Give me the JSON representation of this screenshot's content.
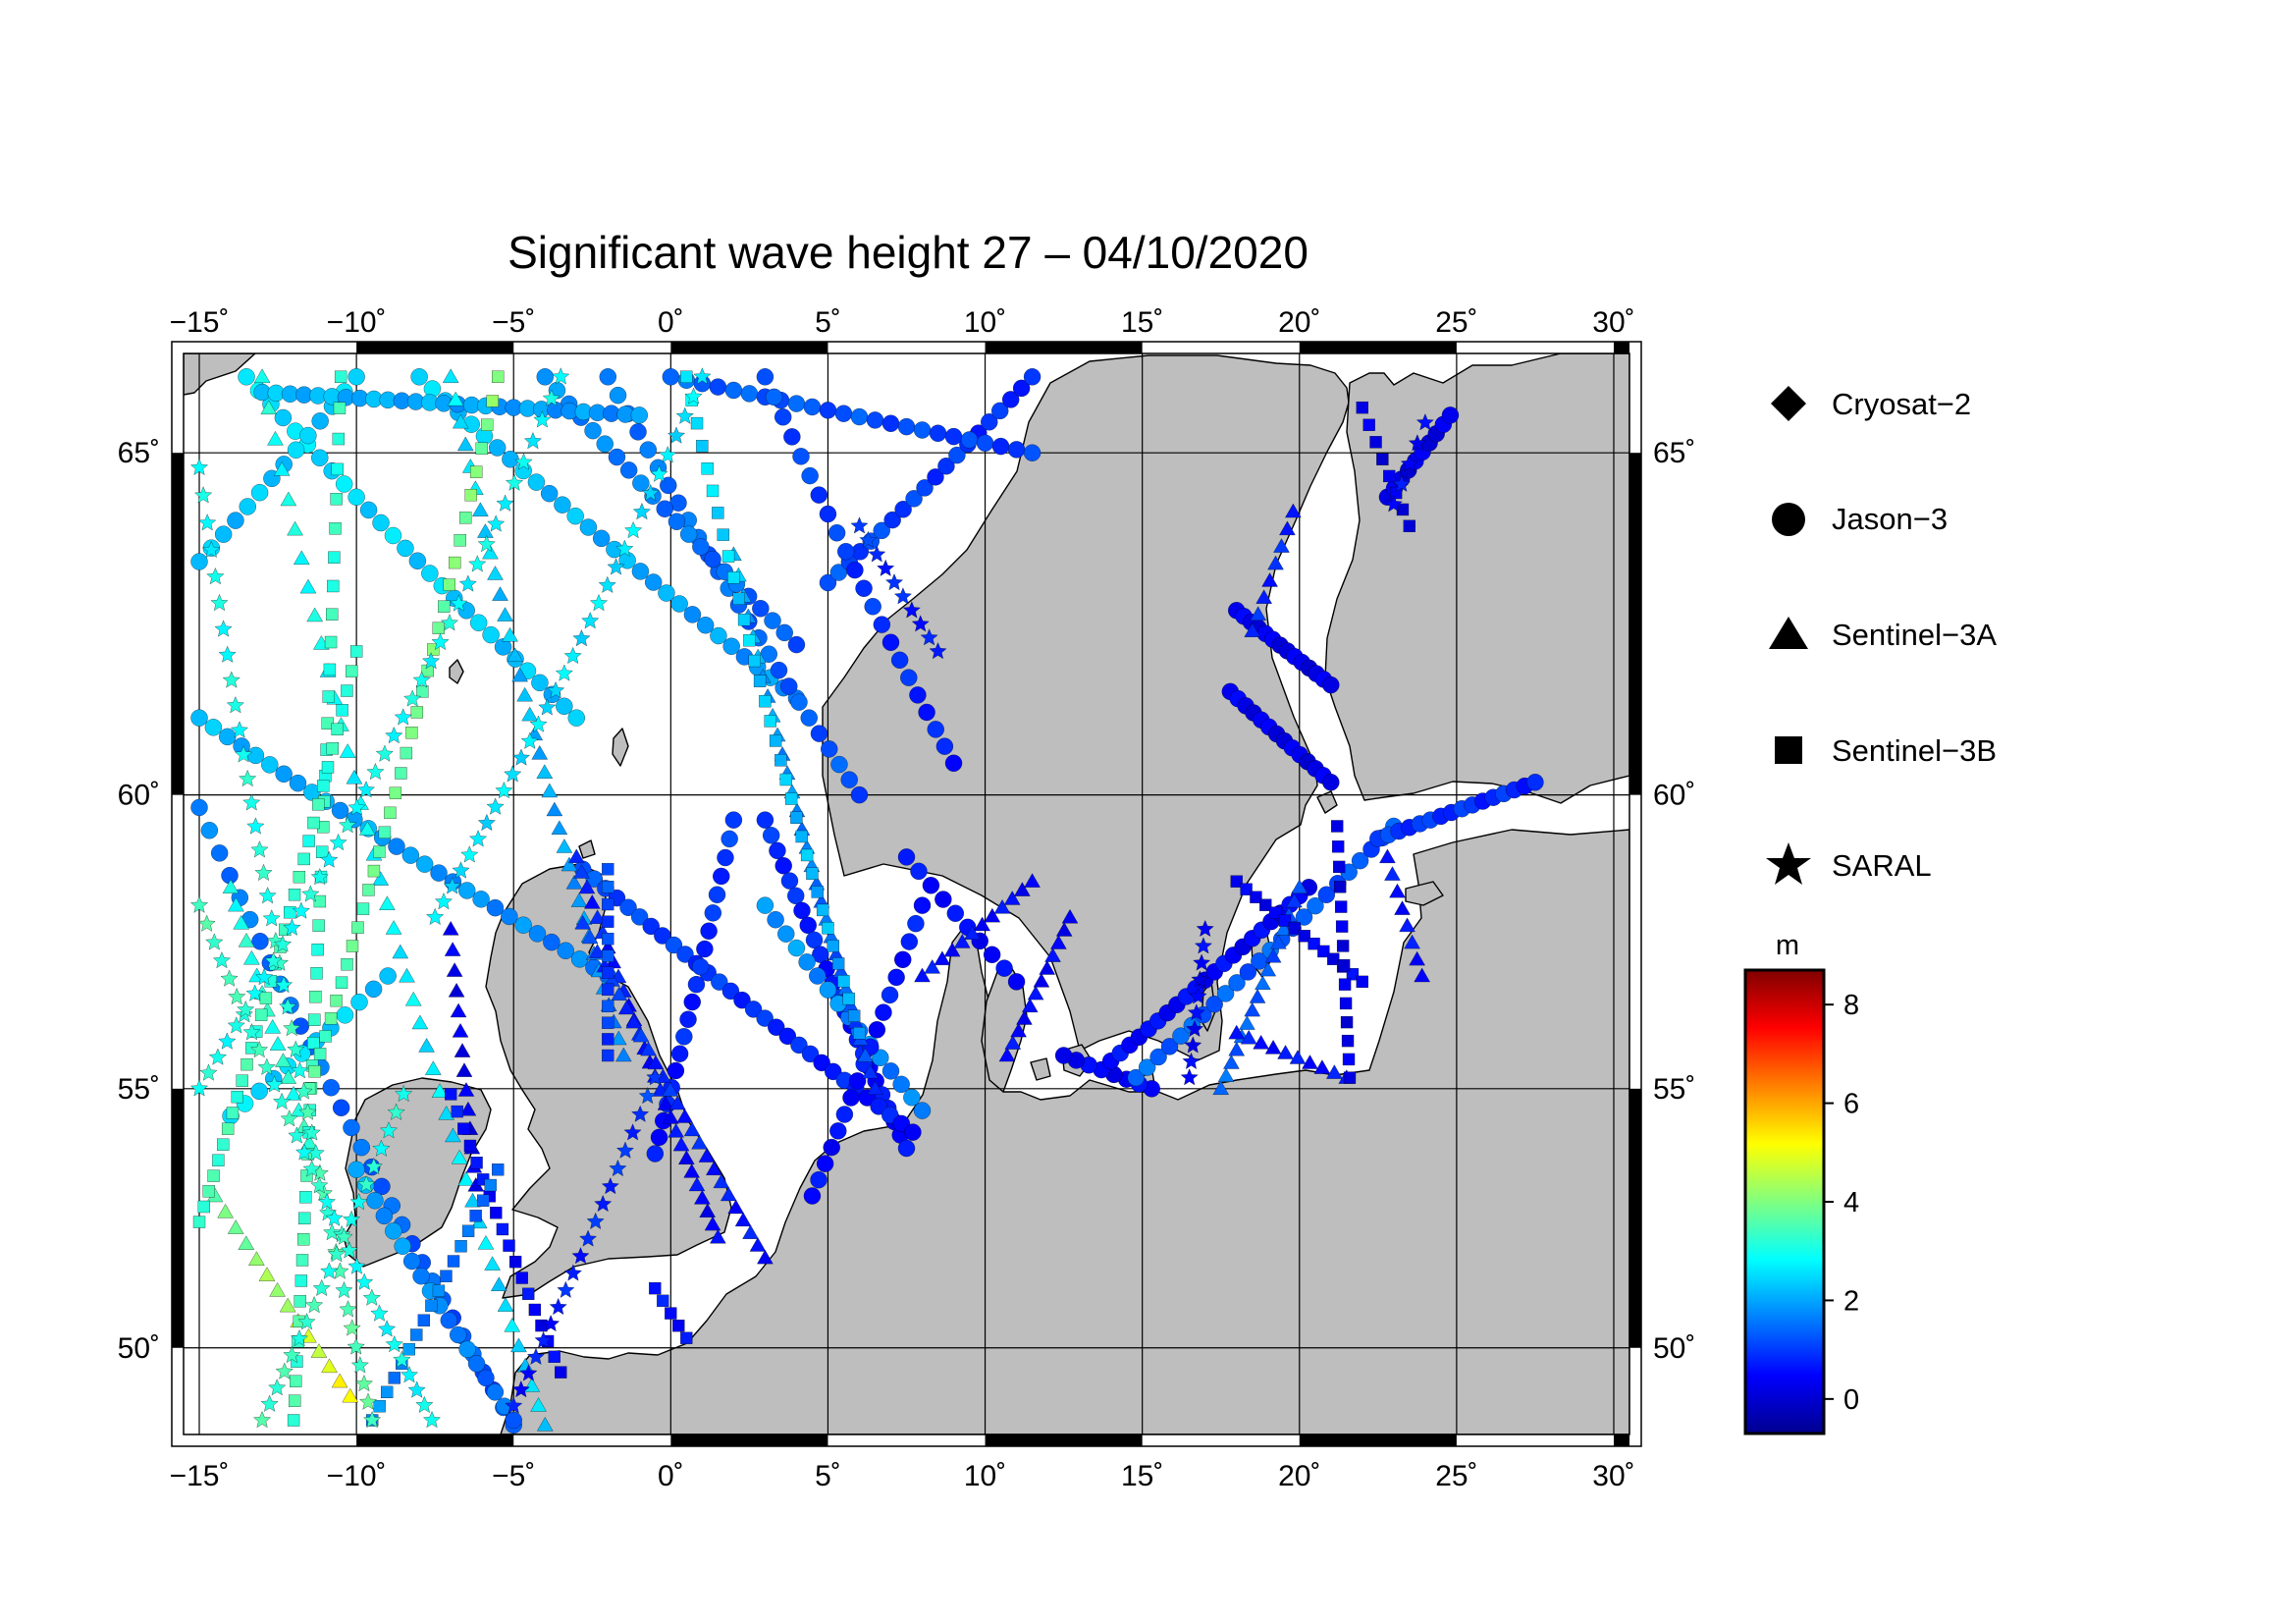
{
  "title": "Significant wave height 27 – 04/10/2020",
  "map": {
    "lon_range": [
      -15.5,
      30.5
    ],
    "lat_range": [
      48.2,
      66.3
    ],
    "lon_ticks": [
      -15,
      -10,
      -5,
      0,
      5,
      10,
      15,
      20,
      25,
      30
    ],
    "lon_tick_labels": [
      "−15˚",
      "−10˚",
      "−5˚",
      "0˚",
      "5˚",
      "10˚",
      "15˚",
      "20˚",
      "25˚",
      "30˚"
    ],
    "lat_ticks": [
      50,
      55,
      60,
      65
    ],
    "lat_tick_labels": [
      "50˚",
      "55˚",
      "60˚",
      "65˚"
    ],
    "land_color": "#bebebe",
    "sea_color": "#ffffff",
    "grid": true
  },
  "legend": {
    "placement": "right",
    "entries": [
      {
        "label": "Cryosat−2",
        "symbol": "diamond"
      },
      {
        "label": "Jason−3",
        "symbol": "circle"
      },
      {
        "label": "Sentinel−3A",
        "symbol": "triangle"
      },
      {
        "label": "Sentinel−3B",
        "symbol": "square"
      },
      {
        "label": "SARAL",
        "symbol": "star"
      }
    ]
  },
  "colorbar": {
    "unit": "m",
    "min": -0.7,
    "max": 8.7,
    "ticks": [
      0,
      2,
      4,
      6,
      8
    ],
    "tick_labels": [
      "0",
      "2",
      "4",
      "6",
      "8"
    ],
    "colors": [
      "#00008f",
      "#0000ff",
      "#0080ff",
      "#00ffff",
      "#80ff80",
      "#ffff00",
      "#ff8000",
      "#ff0000",
      "#800000"
    ]
  },
  "chart_data": {
    "type": "scatter",
    "x_label": "",
    "y_label": "",
    "tracks": [
      {
        "sat": "Jason−3",
        "sym": "circle",
        "from": [
          -15.0,
          61.2
        ],
        "to": [
          -2.0,
          57.0
        ],
        "n": 30,
        "h": [
          2.2,
          1.6
        ]
      },
      {
        "sat": "Jason−3",
        "sym": "circle",
        "from": [
          -15.0,
          59.8
        ],
        "to": [
          -5.0,
          48.4
        ],
        "n": 32,
        "h": [
          1.6,
          1.2
        ]
      },
      {
        "sat": "Jason−3",
        "sym": "circle",
        "from": [
          -13.5,
          66.0
        ],
        "to": [
          -3.0,
          61.2
        ],
        "n": 28,
        "h": [
          2.6,
          2.2
        ]
      },
      {
        "sat": "Jason−3",
        "sym": "circle",
        "from": [
          -8.0,
          66.0
        ],
        "to": [
          4.0,
          61.5
        ],
        "n": 30,
        "h": [
          2.4,
          1.8
        ]
      },
      {
        "sat": "Jason−3",
        "sym": "circle",
        "from": [
          -2.0,
          66.0
        ],
        "to": [
          6.0,
          60.0
        ],
        "n": 26,
        "h": [
          1.6,
          1.2
        ]
      },
      {
        "sat": "Jason−3",
        "sym": "circle",
        "from": [
          5.0,
          63.2
        ],
        "to": [
          11.5,
          66.0
        ],
        "n": 20,
        "h": [
          1.2,
          0.8
        ]
      },
      {
        "sat": "Jason−3",
        "sym": "circle",
        "from": [
          0.0,
          66.0
        ],
        "to": [
          11.5,
          65.0
        ],
        "n": 24,
        "h": [
          1.4,
          1.0
        ]
      },
      {
        "sat": "Jason−3",
        "sym": "circle",
        "from": [
          3.0,
          66.0
        ],
        "to": [
          9.0,
          60.5
        ],
        "n": 22,
        "h": [
          1.2,
          0.7
        ]
      },
      {
        "sat": "Jason−3",
        "sym": "circle",
        "from": [
          -4.0,
          66.0
        ],
        "to": [
          4.0,
          62.3
        ],
        "n": 22,
        "h": [
          1.8,
          1.3
        ]
      },
      {
        "sat": "Jason−3",
        "sym": "circle",
        "from": [
          -10.0,
          66.0
        ],
        "to": [
          -15.0,
          63.5
        ],
        "n": 14,
        "h": [
          2.4,
          2.2
        ]
      },
      {
        "sat": "Jason−3",
        "sym": "circle",
        "from": [
          3.0,
          59.6
        ],
        "to": [
          7.5,
          53.9
        ],
        "n": 24,
        "h": [
          0.9,
          0.5
        ]
      },
      {
        "sat": "Jason−3",
        "sym": "circle",
        "from": [
          -2.8,
          58.8
        ],
        "to": [
          7.7,
          54.2
        ],
        "n": 30,
        "h": [
          1.2,
          0.6
        ]
      },
      {
        "sat": "Jason−3",
        "sym": "circle",
        "from": [
          8.0,
          54.6
        ],
        "to": [
          3.0,
          58.2
        ],
        "n": 16,
        "h": [
          1.6,
          1.9
        ]
      },
      {
        "sat": "Jason−3",
        "sym": "circle",
        "from": [
          2.0,
          59.6
        ],
        "to": [
          -0.5,
          53.8
        ],
        "n": 20,
        "h": [
          1.0,
          0.6
        ]
      },
      {
        "sat": "Jason−3",
        "sym": "circle",
        "from": [
          4.5,
          53.0
        ],
        "to": [
          8.0,
          58.2
        ],
        "n": 18,
        "h": [
          0.5,
          0.7
        ]
      },
      {
        "sat": "Jason−3",
        "sym": "circle",
        "from": [
          11.0,
          56.9
        ],
        "to": [
          7.5,
          59.0
        ],
        "n": 10,
        "h": [
          0.4,
          0.6
        ]
      },
      {
        "sat": "Jason−3",
        "sym": "circle",
        "from": [
          15.3,
          55.0
        ],
        "to": [
          12.5,
          55.6
        ],
        "n": 8,
        "h": [
          0.4,
          0.4
        ]
      },
      {
        "sat": "Jason−3",
        "sym": "circle",
        "from": [
          14.0,
          55.5
        ],
        "to": [
          20.3,
          58.5
        ],
        "n": 22,
        "h": [
          0.5,
          0.4
        ]
      },
      {
        "sat": "Jason−3",
        "sym": "circle",
        "from": [
          14.8,
          55.2
        ],
        "to": [
          23.0,
          59.5
        ],
        "n": 24,
        "h": [
          1.4,
          1.2
        ]
      },
      {
        "sat": "Jason−3",
        "sym": "circle",
        "from": [
          22.5,
          59.3
        ],
        "to": [
          27.5,
          60.2
        ],
        "n": 16,
        "h": [
          1.0,
          0.8
        ]
      },
      {
        "sat": "Jason−3",
        "sym": "circle",
        "from": [
          18.0,
          62.8
        ],
        "to": [
          21.0,
          61.7
        ],
        "n": 14,
        "h": [
          0.3,
          0.2
        ]
      },
      {
        "sat": "Jason−3",
        "sym": "circle",
        "from": [
          17.8,
          61.6
        ],
        "to": [
          21.0,
          60.2
        ],
        "n": 14,
        "h": [
          0.3,
          0.2
        ]
      },
      {
        "sat": "Jason−3",
        "sym": "circle",
        "from": [
          22.8,
          64.4
        ],
        "to": [
          24.8,
          65.5
        ],
        "n": 10,
        "h": [
          0.2,
          0.2
        ]
      },
      {
        "sat": "Jason−3",
        "sym": "circle",
        "from": [
          -10.0,
          53.5
        ],
        "to": [
          -5.0,
          48.5
        ],
        "n": 18,
        "h": [
          2.0,
          1.4
        ]
      },
      {
        "sat": "Jason−3",
        "sym": "circle",
        "from": [
          -14.0,
          54.5
        ],
        "to": [
          -9.0,
          57.0
        ],
        "n": 12,
        "h": [
          2.5,
          2.3
        ]
      },
      {
        "sat": "Jason−3",
        "sym": "circle",
        "from": [
          -13.0,
          65.8
        ],
        "to": [
          -1.0,
          65.5
        ],
        "n": 28,
        "h": [
          2.2,
          1.8
        ]
      },
      {
        "sat": "Sentinel−3A",
        "sym": "triangle",
        "from": [
          -13.0,
          66.0
        ],
        "to": [
          -4.0,
          48.4
        ],
        "n": 44,
        "h": [
          3.0,
          2.4
        ]
      },
      {
        "sat": "Sentinel−3A",
        "sym": "triangle",
        "from": [
          -11.5,
          54.0
        ],
        "to": [
          -14.0,
          58.5
        ],
        "n": 16,
        "h": [
          3.2,
          3.0
        ]
      },
      {
        "sat": "Sentinel−3A",
        "sym": "triangle",
        "from": [
          -7.0,
          66.0
        ],
        "to": [
          -1.5,
          55.6
        ],
        "n": 36,
        "h": [
          2.6,
          1.6
        ]
      },
      {
        "sat": "Sentinel−3A",
        "sym": "triangle",
        "from": [
          2.0,
          63.6
        ],
        "to": [
          6.5,
          55.0
        ],
        "n": 30,
        "h": [
          2.2,
          1.0
        ]
      },
      {
        "sat": "Sentinel−3A",
        "sym": "triangle",
        "from": [
          -3.0,
          59.0
        ],
        "to": [
          1.5,
          52.2
        ],
        "n": 28,
        "h": [
          0.8,
          0.4
        ]
      },
      {
        "sat": "Sentinel−3A",
        "sym": "triangle",
        "from": [
          -2.8,
          57.9
        ],
        "to": [
          3.0,
          51.8
        ],
        "n": 26,
        "h": [
          1.0,
          0.6
        ]
      },
      {
        "sat": "Sentinel−3A",
        "sym": "triangle",
        "from": [
          8.0,
          57.0
        ],
        "to": [
          11.5,
          58.6
        ],
        "n": 12,
        "h": [
          0.6,
          0.5
        ]
      },
      {
        "sat": "Sentinel−3A",
        "sym": "triangle",
        "from": [
          10.7,
          55.6
        ],
        "to": [
          12.7,
          58.0
        ],
        "n": 12,
        "h": [
          0.5,
          0.4
        ]
      },
      {
        "sat": "Sentinel−3A",
        "sym": "triangle",
        "from": [
          17.5,
          55.0
        ],
        "to": [
          20.0,
          58.5
        ],
        "n": 16,
        "h": [
          1.4,
          1.2
        ]
      },
      {
        "sat": "Sentinel−3A",
        "sym": "triangle",
        "from": [
          18.0,
          56.0
        ],
        "to": [
          21.5,
          55.2
        ],
        "n": 10,
        "h": [
          0.6,
          0.6
        ]
      },
      {
        "sat": "Sentinel−3A",
        "sym": "triangle",
        "from": [
          22.8,
          59.0
        ],
        "to": [
          23.9,
          57.0
        ],
        "n": 8,
        "h": [
          0.6,
          0.6
        ]
      },
      {
        "sat": "Sentinel−3A",
        "sym": "triangle",
        "from": [
          18.5,
          62.5
        ],
        "to": [
          19.8,
          64.2
        ],
        "n": 8,
        "h": [
          0.8,
          0.8
        ]
      },
      {
        "sat": "Sentinel−3A",
        "sym": "triangle",
        "from": [
          -7.0,
          57.8
        ],
        "to": [
          -6.2,
          53.2
        ],
        "n": 14,
        "h": [
          0.3,
          0.2
        ]
      },
      {
        "sat": "Sentinel−3A",
        "sym": "triangle",
        "from": [
          -10.2,
          49.0
        ],
        "to": [
          -14.5,
          53.0
        ],
        "n": 14,
        "h": [
          5.2,
          3.6
        ]
      },
      {
        "sat": "Sentinel−3B",
        "sym": "square",
        "from": [
          -10.5,
          66.0
        ],
        "to": [
          -12.0,
          48.5
        ],
        "n": 44,
        "h": [
          3.2,
          3.4
        ]
      },
      {
        "sat": "Sentinel−3B",
        "sym": "square",
        "from": [
          -10.0,
          62.2
        ],
        "to": [
          -15.0,
          52.5
        ],
        "n": 34,
        "h": [
          3.2,
          3.4
        ]
      },
      {
        "sat": "Sentinel−3B",
        "sym": "square",
        "from": [
          -5.5,
          66.0
        ],
        "to": [
          -11.5,
          55.0
        ],
        "n": 36,
        "h": [
          4.0,
          3.5
        ]
      },
      {
        "sat": "Sentinel−3B",
        "sym": "square",
        "from": [
          0.5,
          66.0
        ],
        "to": [
          6.0,
          56.0
        ],
        "n": 34,
        "h": [
          2.6,
          2.0
        ]
      },
      {
        "sat": "Sentinel−3B",
        "sym": "square",
        "from": [
          -2.0,
          58.8
        ],
        "to": [
          -2.0,
          55.6
        ],
        "n": 12,
        "h": [
          1.2,
          1.0
        ]
      },
      {
        "sat": "Sentinel−3B",
        "sym": "square",
        "from": [
          -7.0,
          54.9
        ],
        "to": [
          -3.5,
          49.5
        ],
        "n": 18,
        "h": [
          0.6,
          0.4
        ]
      },
      {
        "sat": "Sentinel−3B",
        "sym": "square",
        "from": [
          -5.5,
          53.5
        ],
        "to": [
          -9.5,
          48.5
        ],
        "n": 18,
        "h": [
          1.4,
          1.8
        ]
      },
      {
        "sat": "Sentinel−3B",
        "sym": "square",
        "from": [
          18.0,
          58.6
        ],
        "to": [
          22.0,
          56.9
        ],
        "n": 14,
        "h": [
          0.3,
          0.4
        ]
      },
      {
        "sat": "Sentinel−3B",
        "sym": "square",
        "from": [
          21.2,
          59.5
        ],
        "to": [
          21.6,
          55.2
        ],
        "n": 14,
        "h": [
          0.2,
          0.2
        ]
      },
      {
        "sat": "Sentinel−3B",
        "sym": "square",
        "from": [
          22.0,
          65.6
        ],
        "to": [
          23.5,
          64.0
        ],
        "n": 8,
        "h": [
          0.2,
          0.2
        ]
      },
      {
        "sat": "Sentinel−3B",
        "sym": "square",
        "from": [
          -0.5,
          51.2
        ],
        "to": [
          0.5,
          50.2
        ],
        "n": 5,
        "h": [
          0.6,
          0.6
        ]
      },
      {
        "sat": "SARAL",
        "sym": "star",
        "from": [
          -15.0,
          64.8
        ],
        "to": [
          -9.5,
          48.5
        ],
        "n": 44,
        "h": [
          2.8,
          3.6
        ]
      },
      {
        "sat": "SARAL",
        "sym": "star",
        "from": [
          -15.0,
          58.2
        ],
        "to": [
          -7.6,
          48.5
        ],
        "n": 32,
        "h": [
          3.4,
          2.8
        ]
      },
      {
        "sat": "SARAL",
        "sym": "star",
        "from": [
          -3.5,
          66.0
        ],
        "to": [
          -15.0,
          55.0
        ],
        "n": 40,
        "h": [
          2.8,
          3.0
        ]
      },
      {
        "sat": "SARAL",
        "sym": "star",
        "from": [
          1.0,
          66.0
        ],
        "to": [
          -7.5,
          58.0
        ],
        "n": 32,
        "h": [
          2.6,
          2.6
        ]
      },
      {
        "sat": "SARAL",
        "sym": "star",
        "from": [
          -0.5,
          55.2
        ],
        "to": [
          -5.0,
          48.8
        ],
        "n": 20,
        "h": [
          1.0,
          0.6
        ]
      },
      {
        "sat": "SARAL",
        "sym": "star",
        "from": [
          6.0,
          64.0
        ],
        "to": [
          8.5,
          62.2
        ],
        "n": 10,
        "h": [
          1.0,
          0.6
        ]
      },
      {
        "sat": "SARAL",
        "sym": "star",
        "from": [
          17.0,
          57.8
        ],
        "to": [
          16.5,
          55.2
        ],
        "n": 10,
        "h": [
          0.4,
          0.4
        ]
      },
      {
        "sat": "SARAL",
        "sym": "star",
        "from": [
          23.0,
          64.3
        ],
        "to": [
          24.0,
          65.4
        ],
        "n": 5,
        "h": [
          0.5,
          0.5
        ]
      },
      {
        "sat": "SARAL",
        "sym": "star",
        "from": [
          -8.5,
          54.9
        ],
        "to": [
          -13.0,
          48.5
        ],
        "n": 20,
        "h": [
          3.0,
          3.4
        ]
      }
    ]
  }
}
